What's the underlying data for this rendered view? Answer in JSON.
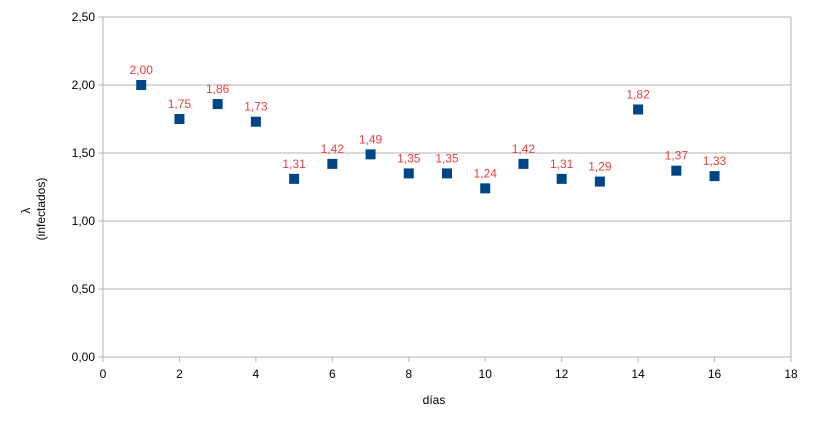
{
  "chart_data": {
    "type": "scatter",
    "title": "",
    "xlabel": "días",
    "ylabel": "λ",
    "ylabel_sub": "(infectados)",
    "xlim": [
      0,
      18
    ],
    "ylim": [
      0,
      2.5
    ],
    "xticks": [
      "0",
      "2",
      "4",
      "6",
      "8",
      "10",
      "12",
      "14",
      "16",
      "18"
    ],
    "yticks": [
      "0,00",
      "0,50",
      "1,00",
      "1,50",
      "2,00",
      "2,50"
    ],
    "grid": "horizontal",
    "legend": "none",
    "marker_color": "#004586",
    "label_color": "#e8403f",
    "x": [
      1,
      2,
      3,
      4,
      5,
      6,
      7,
      8,
      9,
      10,
      11,
      12,
      13,
      14,
      15,
      16
    ],
    "y": [
      2.0,
      1.75,
      1.86,
      1.73,
      1.31,
      1.42,
      1.49,
      1.35,
      1.35,
      1.24,
      1.42,
      1.31,
      1.29,
      1.82,
      1.37,
      1.33
    ],
    "data_labels": [
      "2,00",
      "1,75",
      "1,86",
      "1,73",
      "1,31",
      "1,42",
      "1,49",
      "1,35",
      "1,35",
      "1,24",
      "1,42",
      "1,31",
      "1,29",
      "1,82",
      "1,37",
      "1,33"
    ]
  }
}
